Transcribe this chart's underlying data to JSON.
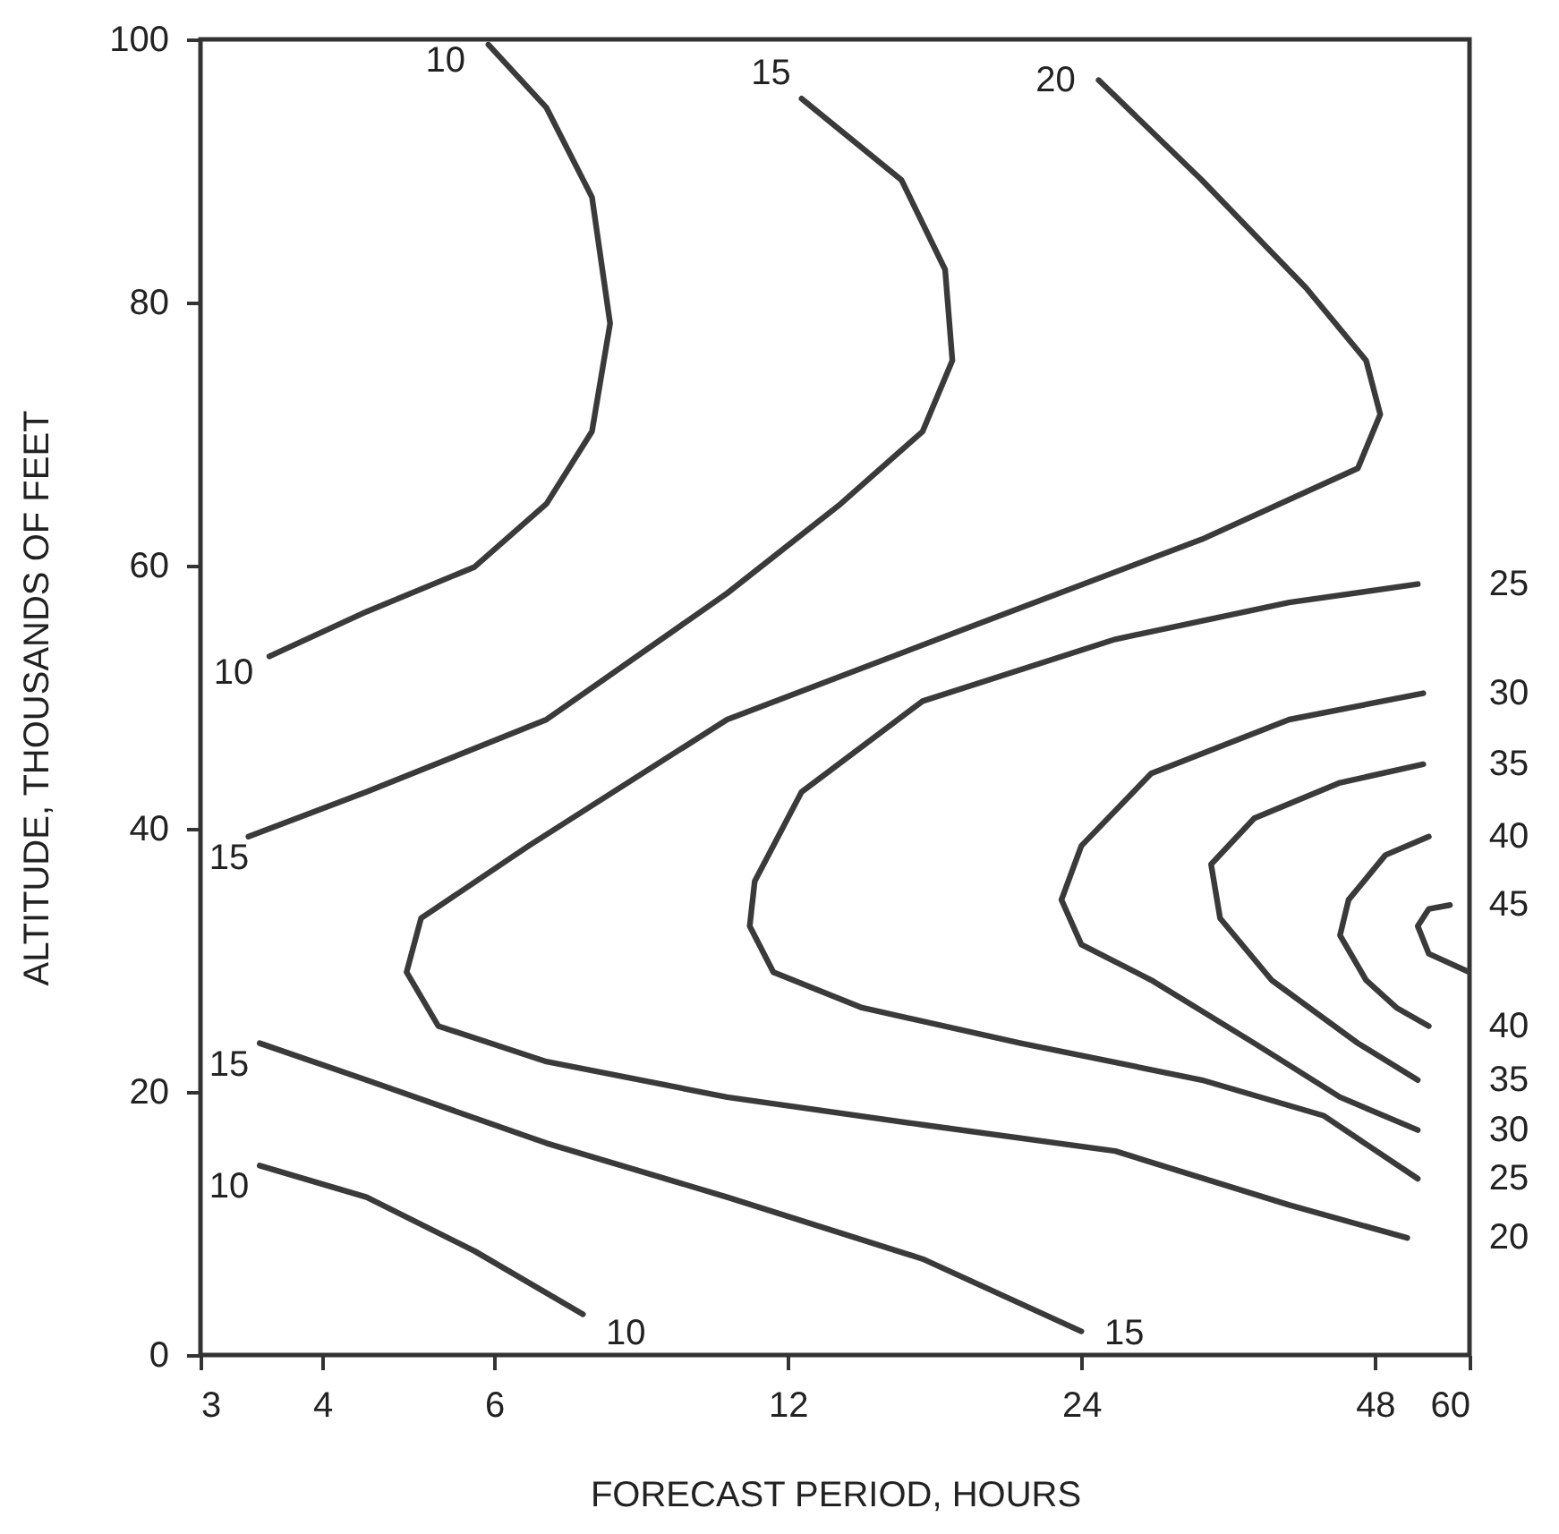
{
  "chart_data": {
    "type": "line",
    "xlabel": "FORECAST PERIOD, HOURS",
    "ylabel": "ALTITUDE, THOUSANDS OF FEET",
    "log": "x",
    "xlim": [
      3,
      60
    ],
    "xticks": [
      3,
      4,
      6,
      12,
      24,
      48,
      60
    ],
    "ylim": [
      0,
      100
    ],
    "yticks": [
      0,
      20,
      40,
      60,
      80,
      100
    ],
    "grid": false,
    "line_style": "solid",
    "series": [
      {
        "name": "10",
        "color": "#3a3a3a",
        "x": [
          5.92,
          6.79,
          7.56,
          7.89,
          7.56,
          6.79,
          5.73,
          4.44,
          3.53
        ],
        "values": [
          99.6,
          94.8,
          88.0,
          78.4,
          70.2,
          64.7,
          59.9,
          56.5,
          53.1
        ]
      },
      {
        "name": "15",
        "color": "#3a3a3a",
        "x": [
          12.4,
          15.7,
          17.4,
          17.7,
          16.5,
          13.6,
          10.4,
          6.79,
          4.44,
          3.36
        ],
        "values": [
          95.5,
          89.3,
          82.5,
          75.6,
          70.2,
          64.7,
          57.9,
          48.3,
          42.8,
          39.4
        ]
      },
      {
        "name": "20",
        "color": "#3a3a3a",
        "x": [
          25.0,
          31.9,
          40.8,
          47.0,
          48.6,
          46.1,
          31.9,
          18.1,
          10.4,
          6.51,
          5.05,
          4.88,
          5.26,
          6.79,
          10.4,
          16.5,
          26.0,
          39.2,
          51.8
        ],
        "values": [
          96.9,
          89.3,
          81.1,
          75.6,
          71.5,
          67.4,
          62.0,
          55.1,
          48.3,
          38.7,
          33.2,
          29.1,
          25.0,
          22.3,
          19.6,
          17.5,
          15.5,
          11.4,
          8.9
        ]
      },
      {
        "name": "25",
        "color": "#3a3a3a",
        "x": [
          53.1,
          39.2,
          26.0,
          16.5,
          12.4,
          11.1,
          10.97,
          11.6,
          14.3,
          20.8,
          31.9,
          42.5,
          53.1
        ],
        "values": [
          58.6,
          57.2,
          54.4,
          49.7,
          42.8,
          36.0,
          32.6,
          29.1,
          26.4,
          23.7,
          20.9,
          18.2,
          13.4
        ]
      },
      {
        "name": "30",
        "color": "#3a3a3a",
        "x": [
          53.8,
          39.2,
          28.3,
          24.0,
          22.9,
          24.0,
          28.3,
          36.1,
          44.2,
          53.1
        ],
        "values": [
          50.3,
          48.3,
          44.2,
          38.7,
          34.6,
          31.2,
          28.5,
          23.7,
          19.6,
          17.1
        ]
      },
      {
        "name": "35",
        "color": "#3a3a3a",
        "x": [
          53.8,
          44.2,
          36.1,
          32.6,
          33.3,
          37.6,
          46.1,
          53.1
        ],
        "values": [
          44.9,
          43.5,
          40.8,
          37.3,
          33.2,
          28.5,
          23.7,
          20.9
        ]
      },
      {
        "name": "40",
        "color": "#3a3a3a",
        "x": [
          54.5,
          49.2,
          45.1,
          44.2,
          47.0,
          50.5,
          54.5
        ],
        "values": [
          39.4,
          38.0,
          34.6,
          31.9,
          28.5,
          26.4,
          25.0
        ]
      },
      {
        "name": "45",
        "color": "#3a3a3a",
        "x": [
          60,
          54.5,
          53.1,
          54.5,
          57.3
        ],
        "values": [
          29.1,
          30.5,
          32.6,
          33.9,
          34.2
        ]
      },
      {
        "name": "15",
        "color": "#3a3a3a",
        "x": [
          3.45,
          4.44,
          6.79,
          10.4,
          16.5,
          24.0
        ],
        "values": [
          23.7,
          20.9,
          16.1,
          12.0,
          7.3,
          1.8
        ]
      },
      {
        "name": "10",
        "color": "#3a3a3a",
        "x": [
          3.45,
          4.44,
          5.73,
          7.4
        ],
        "values": [
          14.4,
          12.0,
          7.9,
          3.1
        ]
      }
    ]
  }
}
